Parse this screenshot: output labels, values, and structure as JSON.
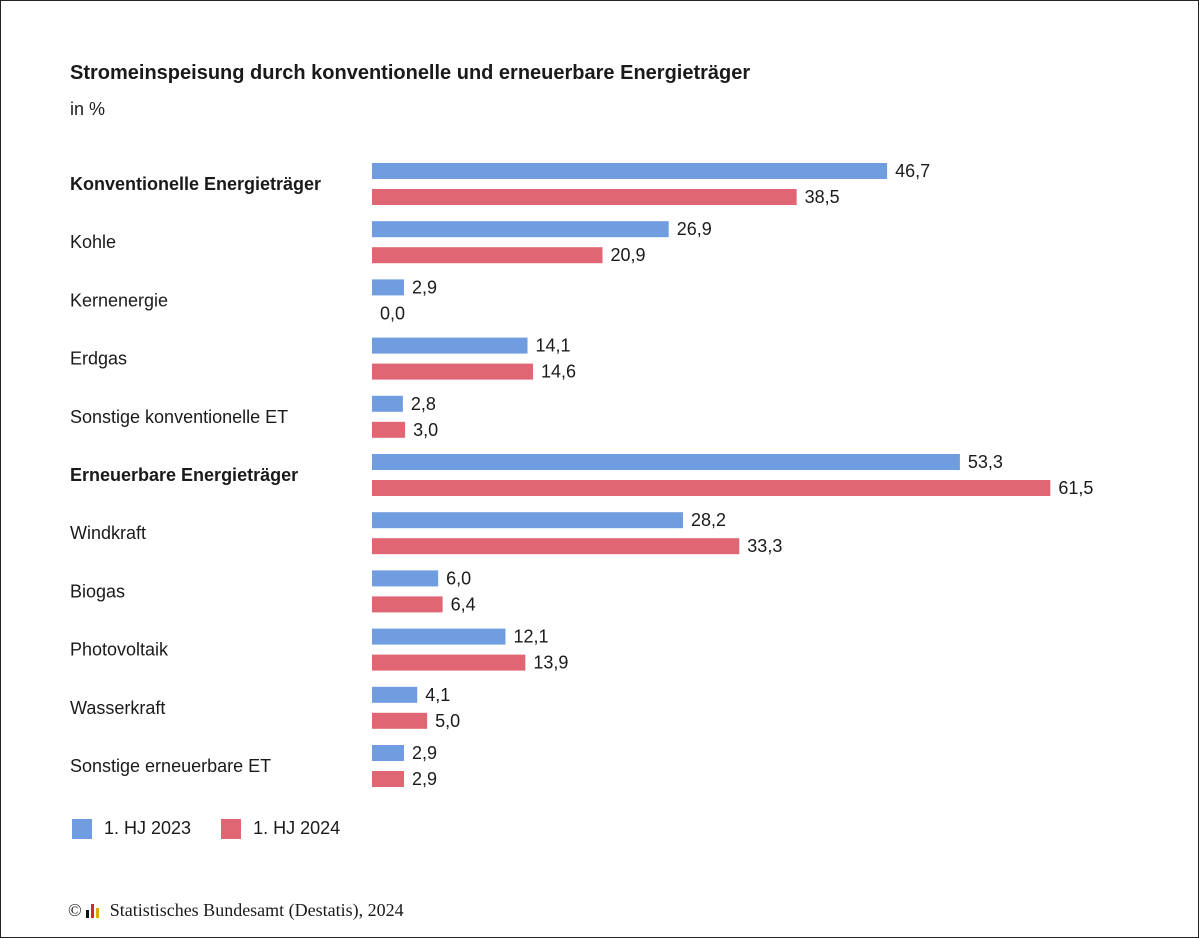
{
  "title": "Stromeinspeisung durch konventionelle und erneuerbare Energieträger",
  "subtitle": "in %",
  "legend": {
    "s1": "1. HJ 2023",
    "s2": "1. HJ 2024"
  },
  "footer": {
    "copyright": "©",
    "text": "Statistisches Bundesamt (Destatis), 2024"
  },
  "colors": {
    "series1": "#6f9de0",
    "series2": "#e06673",
    "logo_black": "#111111",
    "logo_red": "#d62828",
    "logo_gold": "#e0a800"
  },
  "chart_data": {
    "type": "bar",
    "orientation": "horizontal",
    "title": "Stromeinspeisung durch konventionelle und erneuerbare Energieträger",
    "subtitle": "in %",
    "categories": [
      "Konventionelle Energieträger",
      "Kohle",
      "Kernenergie",
      "Erdgas",
      "Sonstige konventionelle ET",
      "Erneuerbare Energieträger",
      "Windkraft",
      "Biogas",
      "Photovoltaik",
      "Wasserkraft",
      "Sonstige erneuerbare ET"
    ],
    "bold_categories": [
      0,
      5
    ],
    "series": [
      {
        "name": "1. HJ 2023",
        "values": [
          46.7,
          26.9,
          2.9,
          14.1,
          2.8,
          53.3,
          28.2,
          6.0,
          12.1,
          4.1,
          2.9
        ]
      },
      {
        "name": "1. HJ 2024",
        "values": [
          38.5,
          20.9,
          0.0,
          14.6,
          3.0,
          61.5,
          33.3,
          6.4,
          13.9,
          5.0,
          2.9
        ]
      }
    ],
    "xlim": [
      0,
      100
    ],
    "decimal_separator": ",",
    "grid": false,
    "legend_position": "bottom-left"
  }
}
